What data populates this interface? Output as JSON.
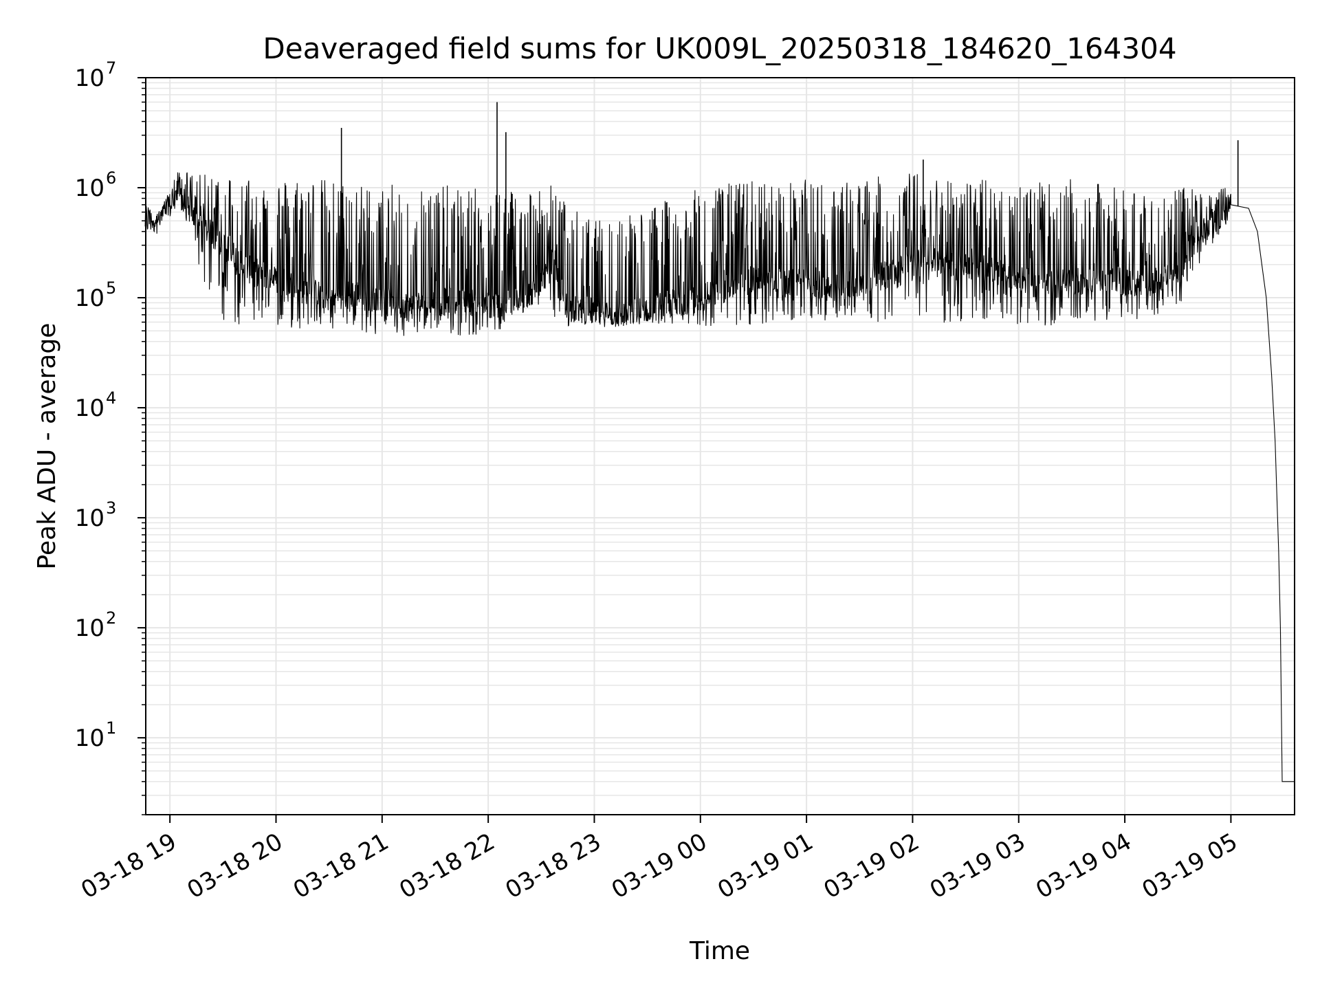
{
  "chart_data": {
    "type": "line",
    "title": "Deaveraged field sums for UK009L_20250318_184620_164304",
    "xlabel": "Time",
    "ylabel": "Peak ADU - average",
    "yscale": "log",
    "ylim": [
      2,
      10000000
    ],
    "xlim": [
      "2025-03-18 18:46:20",
      "2025-03-19 05:36:00"
    ],
    "grid": true,
    "grid_which": "both",
    "line_color": "#000000",
    "grid_color": "#e6e6e6",
    "x_tick_labels": [
      "03-18 19",
      "03-18 20",
      "03-18 21",
      "03-18 22",
      "03-18 23",
      "03-19 00",
      "03-19 01",
      "03-19 02",
      "03-19 03",
      "03-19 04",
      "03-19 05"
    ],
    "x_tick_values": [
      "2025-03-18 19:00",
      "2025-03-18 20:00",
      "2025-03-18 21:00",
      "2025-03-18 22:00",
      "2025-03-18 23:00",
      "2025-03-19 00:00",
      "2025-03-19 01:00",
      "2025-03-19 02:00",
      "2025-03-19 03:00",
      "2025-03-19 04:00",
      "2025-03-19 05:00"
    ],
    "y_ticks": [
      {
        "base": "10",
        "exp": "1",
        "value": 10
      },
      {
        "base": "10",
        "exp": "2",
        "value": 100
      },
      {
        "base": "10",
        "exp": "3",
        "value": 1000
      },
      {
        "base": "10",
        "exp": "4",
        "value": 10000
      },
      {
        "base": "10",
        "exp": "5",
        "value": 100000
      },
      {
        "base": "10",
        "exp": "6",
        "value": 1000000
      },
      {
        "base": "10",
        "exp": "7",
        "value": 10000000
      }
    ],
    "series": [
      {
        "x": [
          "2025-03-18 18:46",
          "2025-03-18 18:55",
          "2025-03-18 19:05",
          "2025-03-18 19:15",
          "2025-03-18 19:30",
          "2025-03-18 19:45",
          "2025-03-18 20:00",
          "2025-03-18 20:15",
          "2025-03-18 20:30",
          "2025-03-18 20:45",
          "2025-03-18 21:00",
          "2025-03-18 21:15",
          "2025-03-18 21:30",
          "2025-03-18 21:45",
          "2025-03-18 22:00",
          "2025-03-18 22:15",
          "2025-03-18 22:30",
          "2025-03-18 22:36",
          "2025-03-18 22:45",
          "2025-03-18 23:00",
          "2025-03-18 23:15",
          "2025-03-18 23:30",
          "2025-03-18 23:45",
          "2025-03-19 00:00",
          "2025-03-19 00:15",
          "2025-03-19 00:30",
          "2025-03-19 00:45",
          "2025-03-19 01:00",
          "2025-03-19 01:15",
          "2025-03-19 01:30",
          "2025-03-19 01:45",
          "2025-03-19 02:00",
          "2025-03-19 02:15",
          "2025-03-19 02:30",
          "2025-03-19 02:45",
          "2025-03-19 03:00",
          "2025-03-19 03:15",
          "2025-03-19 03:30",
          "2025-03-19 03:45",
          "2025-03-19 04:00",
          "2025-03-19 04:15",
          "2025-03-19 04:30",
          "2025-03-19 04:45",
          "2025-03-19 05:00",
          "2025-03-19 05:10",
          "2025-03-19 05:15",
          "2025-03-19 05:20",
          "2025-03-19 05:23",
          "2025-03-19 05:25",
          "2025-03-19 05:27",
          "2025-03-19 05:28",
          "2025-03-19 05:29",
          "2025-03-19 05:31",
          "2025-03-19 05:36"
        ],
        "y": [
          500000,
          520000,
          900000,
          500000,
          300000,
          180000,
          150000,
          120000,
          100000,
          110000,
          90000,
          85000,
          90000,
          95000,
          85000,
          90000,
          130000,
          200000,
          80000,
          75000,
          70000,
          80000,
          90000,
          100000,
          120000,
          150000,
          130000,
          140000,
          120000,
          140000,
          160000,
          200000,
          220000,
          200000,
          180000,
          150000,
          130000,
          140000,
          150000,
          140000,
          130000,
          200000,
          400000,
          700000,
          650000,
          400000,
          100000,
          20000,
          5000,
          500,
          100,
          4,
          4,
          4
        ],
        "lower_envelope": [
          450000,
          480000,
          700000,
          200000,
          60000,
          55000,
          55000,
          50000,
          50000,
          48000,
          45000,
          45000,
          50000,
          45000,
          45000,
          60000,
          90000,
          60000,
          55000,
          55000,
          55000,
          55000,
          55000,
          55000,
          55000,
          55000,
          60000,
          60000,
          60000,
          60000,
          60000,
          60000,
          55000,
          60000,
          55000,
          55000,
          55000,
          60000,
          60000,
          60000,
          60000,
          80000,
          250000,
          500000
        ],
        "upper_envelope": [
          700000,
          650000,
          1500000,
          1300000,
          1400000,
          1300000,
          1200000,
          1300000,
          1200000,
          1100000,
          1000000,
          1200000,
          1100000,
          1000000,
          1000000,
          1100000,
          1000000,
          1100000,
          700000,
          500000,
          600000,
          700000,
          800000,
          1000000,
          1100000,
          1200000,
          1100000,
          1200000,
          1100000,
          1200000,
          1300000,
          1400000,
          1300000,
          1200000,
          1200000,
          1200000,
          1100000,
          1200000,
          1100000,
          1000000,
          900000,
          1000000,
          1000000,
          1000000
        ],
        "spikes": [
          {
            "x": "2025-03-18 20:37",
            "y": 3500000
          },
          {
            "x": "2025-03-18 22:05",
            "y": 6000000
          },
          {
            "x": "2025-03-18 22:10",
            "y": 3200000
          },
          {
            "x": "2025-03-19 02:06",
            "y": 1800000
          },
          {
            "x": "2025-03-19 05:04",
            "y": 2700000
          }
        ]
      }
    ]
  }
}
